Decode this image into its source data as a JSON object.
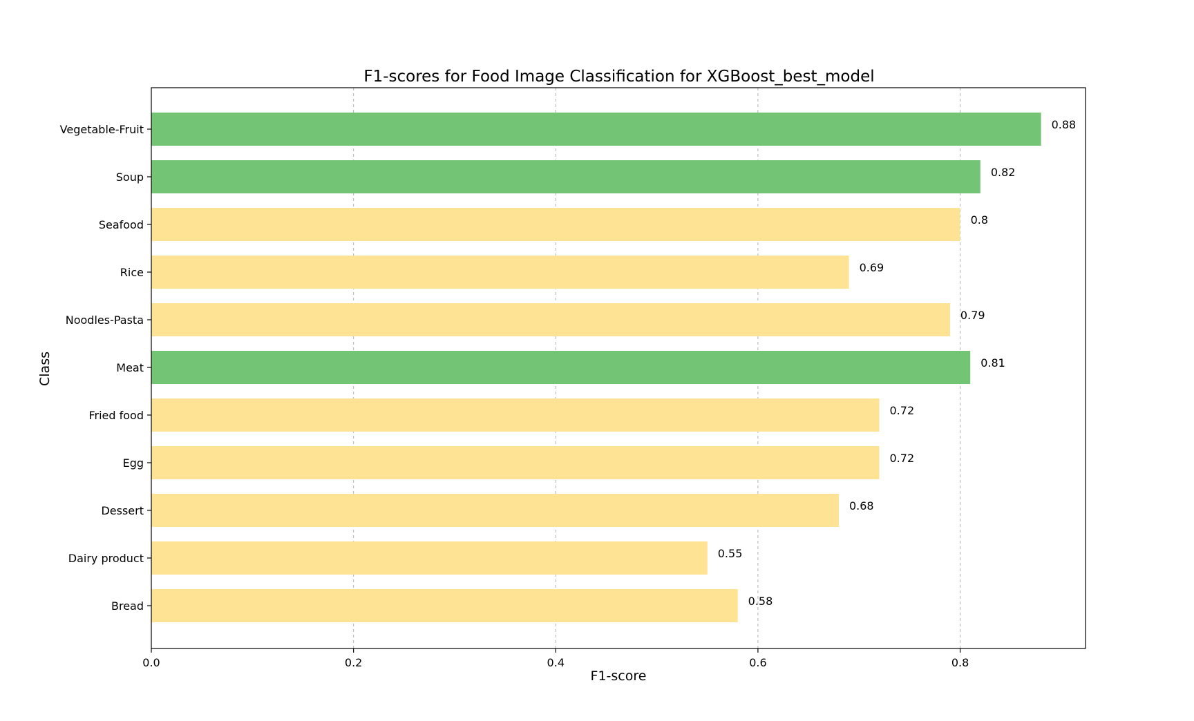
{
  "chart_data": {
    "type": "bar",
    "orientation": "horizontal",
    "title": "F1-scores for Food Image Classification for XGBoost_best_model",
    "xlabel": "F1-score",
    "ylabel": "Class",
    "xlim": [
      0,
      0.924
    ],
    "xticks": [
      0.0,
      0.2,
      0.4,
      0.6,
      0.8
    ],
    "xtick_labels": [
      "0.0",
      "0.2",
      "0.4",
      "0.6",
      "0.8"
    ],
    "grid": "vertical dashed",
    "categories": [
      "Bread",
      "Dairy product",
      "Dessert",
      "Egg",
      "Fried food",
      "Meat",
      "Noodles-Pasta",
      "Rice",
      "Seafood",
      "Soup",
      "Vegetable-Fruit"
    ],
    "values": [
      0.58,
      0.55,
      0.68,
      0.72,
      0.72,
      0.81,
      0.79,
      0.69,
      0.8,
      0.82,
      0.88
    ],
    "value_labels": [
      "0.58",
      "0.55",
      "0.68",
      "0.72",
      "0.72",
      "0.81",
      "0.79",
      "0.69",
      "0.8",
      "0.82",
      "0.88"
    ],
    "bar_colors": [
      "#fde393",
      "#fde393",
      "#fde393",
      "#fde393",
      "#fde393",
      "#74c476",
      "#fde393",
      "#fde393",
      "#fde393",
      "#74c476",
      "#74c476"
    ]
  }
}
